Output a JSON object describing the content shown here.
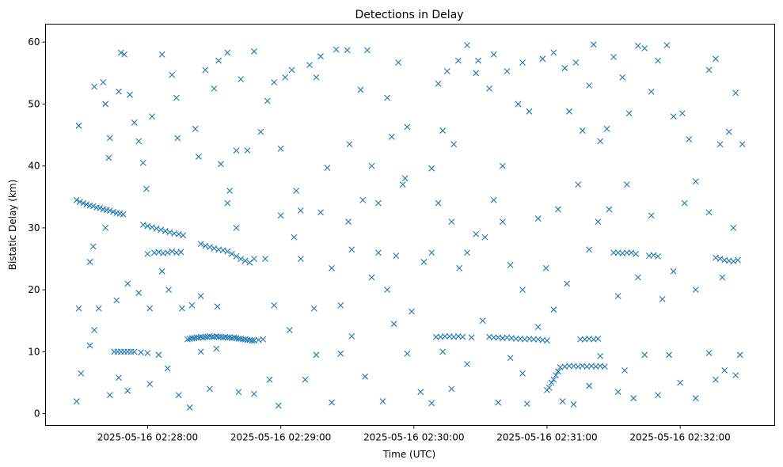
{
  "chart_data": {
    "type": "scatter",
    "title": "Detections in Delay",
    "xlabel": "Time (UTC)",
    "ylabel": "Bistatic Delay (km)",
    "x_unit": "seconds after 2025-05-16 02:27:00",
    "xlim": [
      14,
      342.6
    ],
    "ylim": [
      -1.9,
      62.9
    ],
    "grid": false,
    "marker": "x",
    "color": "#1f77b4",
    "xticks": [
      {
        "value": 60,
        "label": "2025-05-16 02:28:00"
      },
      {
        "value": 120,
        "label": "2025-05-16 02:29:00"
      },
      {
        "value": 180,
        "label": "2025-05-16 02:30:00"
      },
      {
        "value": 240,
        "label": "2025-05-16 02:31:00"
      },
      {
        "value": 300,
        "label": "2025-05-16 02:32:00"
      }
    ],
    "yticks": [
      {
        "value": 0,
        "label": "0"
      },
      {
        "value": 10,
        "label": "10"
      },
      {
        "value": 20,
        "label": "20"
      },
      {
        "value": 30,
        "label": "30"
      },
      {
        "value": 40,
        "label": "40"
      },
      {
        "value": 50,
        "label": "50"
      },
      {
        "value": 60,
        "label": "60"
      }
    ],
    "points": [
      [
        29,
        46.5
      ],
      [
        36,
        52.8
      ],
      [
        40,
        53.5
      ],
      [
        41,
        50
      ],
      [
        42.5,
        41.3
      ],
      [
        43,
        44.5
      ],
      [
        47,
        52
      ],
      [
        48,
        58.3
      ],
      [
        49.5,
        58
      ],
      [
        52,
        51.5
      ],
      [
        54,
        47
      ],
      [
        56,
        44
      ],
      [
        58,
        40.5
      ],
      [
        59.5,
        36.3
      ],
      [
        62,
        48
      ],
      [
        66.5,
        58
      ],
      [
        71,
        54.7
      ],
      [
        73,
        51
      ],
      [
        73.5,
        44.5
      ],
      [
        81.5,
        46
      ],
      [
        83,
        41.5
      ],
      [
        86,
        55.5
      ],
      [
        90,
        52.5
      ],
      [
        92,
        57
      ],
      [
        93,
        40.3
      ],
      [
        96,
        58.3
      ],
      [
        97,
        36
      ],
      [
        100,
        42.5
      ],
      [
        102,
        54
      ],
      [
        105,
        42.5
      ],
      [
        108,
        58.5
      ],
      [
        111,
        45.5
      ],
      [
        114,
        50.5
      ],
      [
        117,
        53.5
      ],
      [
        120,
        42.8
      ],
      [
        122,
        54.3
      ],
      [
        125,
        55.5
      ],
      [
        127,
        36
      ],
      [
        129,
        32.8
      ],
      [
        133,
        56.3
      ],
      [
        136,
        54.3
      ],
      [
        138,
        57.7
      ],
      [
        141,
        39.7
      ],
      [
        145,
        58.8
      ],
      [
        150,
        58.7
      ],
      [
        151,
        43.5
      ],
      [
        156,
        52.3
      ],
      [
        159,
        58.7
      ],
      [
        161,
        40
      ],
      [
        164,
        34
      ],
      [
        168,
        51
      ],
      [
        170,
        44.7
      ],
      [
        173,
        56.7
      ],
      [
        176,
        38
      ],
      [
        177,
        46.3
      ],
      [
        188,
        39.6
      ],
      [
        191,
        53.3
      ],
      [
        193,
        45.7
      ],
      [
        195,
        55.3
      ],
      [
        198,
        43.5
      ],
      [
        200,
        57
      ],
      [
        204,
        59.5
      ],
      [
        208,
        55
      ],
      [
        209,
        57
      ],
      [
        214,
        52.5
      ],
      [
        216,
        58
      ],
      [
        220,
        40
      ],
      [
        222,
        55.3
      ],
      [
        227,
        50
      ],
      [
        229,
        56.7
      ],
      [
        232,
        48.8
      ],
      [
        238,
        57.3
      ],
      [
        243,
        58.3
      ],
      [
        248,
        55.8
      ],
      [
        250,
        48.8
      ],
      [
        253,
        56.7
      ],
      [
        256,
        45.7
      ],
      [
        259,
        53
      ],
      [
        261,
        59.6
      ],
      [
        264,
        44
      ],
      [
        267,
        46
      ],
      [
        270,
        57.6
      ],
      [
        274,
        54.3
      ],
      [
        277,
        48.5
      ],
      [
        281,
        59.4
      ],
      [
        284,
        59
      ],
      [
        287,
        52
      ],
      [
        290,
        57
      ],
      [
        294,
        59.5
      ],
      [
        297,
        48
      ],
      [
        301,
        48.5
      ],
      [
        304,
        44.3
      ],
      [
        307,
        37.5
      ],
      [
        313,
        55.5
      ],
      [
        316,
        57.3
      ],
      [
        318,
        43.5
      ],
      [
        322,
        45.5
      ],
      [
        325,
        51.8
      ],
      [
        328,
        43.5
      ],
      [
        29,
        17
      ],
      [
        34,
        24.5
      ],
      [
        35.5,
        27
      ],
      [
        38,
        17
      ],
      [
        41,
        30
      ],
      [
        46,
        18.3
      ],
      [
        51,
        21
      ],
      [
        56,
        19.5
      ],
      [
        61,
        17
      ],
      [
        66.5,
        23
      ],
      [
        69.5,
        20
      ],
      [
        75.5,
        17
      ],
      [
        80,
        17.5
      ],
      [
        84,
        19
      ],
      [
        91.5,
        17.3
      ],
      [
        96,
        34
      ],
      [
        100,
        30
      ],
      [
        108,
        25
      ],
      [
        113,
        25
      ],
      [
        117,
        17.5
      ],
      [
        120,
        32
      ],
      [
        126,
        28.5
      ],
      [
        129,
        25
      ],
      [
        135,
        17
      ],
      [
        138,
        32.5
      ],
      [
        143,
        23.5
      ],
      [
        147,
        17.5
      ],
      [
        150.5,
        31
      ],
      [
        152,
        26.5
      ],
      [
        157,
        34.5
      ],
      [
        161,
        22
      ],
      [
        164,
        26
      ],
      [
        168,
        20
      ],
      [
        172,
        25.5
      ],
      [
        175,
        37
      ],
      [
        179,
        16.5
      ],
      [
        184.5,
        24.5
      ],
      [
        188,
        26
      ],
      [
        191,
        34
      ],
      [
        197,
        31
      ],
      [
        200.5,
        23.5
      ],
      [
        204,
        26
      ],
      [
        208,
        29
      ],
      [
        212,
        28.5
      ],
      [
        216,
        34.5
      ],
      [
        220,
        31
      ],
      [
        223.5,
        24
      ],
      [
        229,
        20
      ],
      [
        236,
        31.5
      ],
      [
        239.5,
        23.5
      ],
      [
        245,
        33
      ],
      [
        249,
        21
      ],
      [
        254,
        37
      ],
      [
        259,
        26.5
      ],
      [
        263,
        31
      ],
      [
        268,
        33
      ],
      [
        272,
        19
      ],
      [
        276,
        37
      ],
      [
        281,
        22
      ],
      [
        287,
        32
      ],
      [
        292,
        18.5
      ],
      [
        297,
        23
      ],
      [
        302,
        34
      ],
      [
        307,
        20
      ],
      [
        313,
        32.5
      ],
      [
        319,
        22
      ],
      [
        324,
        30
      ],
      [
        28,
        2
      ],
      [
        30,
        6.5
      ],
      [
        34,
        11
      ],
      [
        36,
        13.5
      ],
      [
        43,
        3
      ],
      [
        47,
        5.8
      ],
      [
        51,
        3.7
      ],
      [
        61,
        4.8
      ],
      [
        65,
        9.5
      ],
      [
        69,
        7.3
      ],
      [
        74,
        3
      ],
      [
        79,
        1
      ],
      [
        84,
        10
      ],
      [
        88,
        4
      ],
      [
        91,
        10.5
      ],
      [
        101,
        3.5
      ],
      [
        108,
        3.2
      ],
      [
        115,
        5.5
      ],
      [
        119,
        1.3
      ],
      [
        124,
        13.5
      ],
      [
        131,
        5.5
      ],
      [
        136,
        9.5
      ],
      [
        143,
        1.8
      ],
      [
        147,
        9.7
      ],
      [
        152,
        12.5
      ],
      [
        158,
        6
      ],
      [
        166,
        2
      ],
      [
        171,
        14.5
      ],
      [
        177,
        9.7
      ],
      [
        183,
        3.5
      ],
      [
        188,
        1.7
      ],
      [
        193,
        10
      ],
      [
        197,
        4
      ],
      [
        204,
        8
      ],
      [
        211,
        15
      ],
      [
        218,
        1.8
      ],
      [
        223.5,
        9
      ],
      [
        229,
        6.5
      ],
      [
        231,
        1.6
      ],
      [
        236,
        14
      ],
      [
        243,
        16.8
      ],
      [
        247,
        2
      ],
      [
        252,
        1.5
      ],
      [
        259,
        4.5
      ],
      [
        264,
        9.3
      ],
      [
        272,
        3.5
      ],
      [
        275,
        7
      ],
      [
        279,
        2.5
      ],
      [
        284,
        9.5
      ],
      [
        290,
        3
      ],
      [
        295,
        9.5
      ],
      [
        300,
        5
      ],
      [
        307,
        2.5
      ],
      [
        313,
        9.8
      ],
      [
        316,
        5.5
      ],
      [
        320,
        7
      ],
      [
        325,
        6.2
      ],
      [
        327,
        9.5
      ],
      [
        28,
        34.5
      ],
      [
        29.5,
        34.2
      ],
      [
        31,
        34
      ],
      [
        32.5,
        33.8
      ],
      [
        34,
        33.6
      ],
      [
        35.5,
        33.5
      ],
      [
        37,
        33.3
      ],
      [
        38.5,
        33.2
      ],
      [
        40,
        33
      ],
      [
        41.5,
        32.9
      ],
      [
        43,
        32.8
      ],
      [
        44.5,
        32.6
      ],
      [
        46,
        32.4
      ],
      [
        47.5,
        32.3
      ],
      [
        49,
        32.2
      ],
      [
        58,
        30.5
      ],
      [
        60,
        30.3
      ],
      [
        62,
        30.1
      ],
      [
        64,
        29.9
      ],
      [
        66,
        29.7
      ],
      [
        68,
        29.5
      ],
      [
        70,
        29.3
      ],
      [
        72,
        29.1
      ],
      [
        74,
        29
      ],
      [
        76,
        28.8
      ],
      [
        84,
        27.4
      ],
      [
        86,
        27.1
      ],
      [
        88,
        26.9
      ],
      [
        90,
        26.7
      ],
      [
        92,
        26.5
      ],
      [
        94,
        26.4
      ],
      [
        96,
        26.2
      ],
      [
        98,
        25.8
      ],
      [
        100,
        25.4
      ],
      [
        102,
        25
      ],
      [
        104,
        24.7
      ],
      [
        106,
        24.4
      ],
      [
        78,
        12
      ],
      [
        79,
        12.1
      ],
      [
        80,
        12.2
      ],
      [
        81,
        12.2
      ],
      [
        82,
        12.3
      ],
      [
        83,
        12.3
      ],
      [
        84,
        12.4
      ],
      [
        85,
        12.3
      ],
      [
        86,
        12.4
      ],
      [
        87,
        12.4
      ],
      [
        88,
        12.5
      ],
      [
        89,
        12.4
      ],
      [
        90,
        12.4
      ],
      [
        91,
        12.5
      ],
      [
        92,
        12.4
      ],
      [
        93,
        12.4
      ],
      [
        94,
        12.3
      ],
      [
        95,
        12.4
      ],
      [
        96,
        12.3
      ],
      [
        97,
        12.3
      ],
      [
        98,
        12.2
      ],
      [
        99,
        12.3
      ],
      [
        100,
        12.2
      ],
      [
        101,
        12.1
      ],
      [
        102,
        12.1
      ],
      [
        103,
        12
      ],
      [
        104,
        12
      ],
      [
        105,
        11.9
      ],
      [
        106,
        11.9
      ],
      [
        107,
        11.8
      ],
      [
        108,
        11.8
      ],
      [
        110,
        11.9
      ],
      [
        112,
        12
      ],
      [
        45,
        10
      ],
      [
        46.5,
        10
      ],
      [
        48,
        10
      ],
      [
        49.5,
        10
      ],
      [
        51,
        10
      ],
      [
        52.5,
        10
      ],
      [
        54,
        10
      ],
      [
        57,
        9.9
      ],
      [
        60,
        9.8
      ],
      [
        60,
        25.8
      ],
      [
        63,
        26
      ],
      [
        65,
        26.1
      ],
      [
        67,
        25.9
      ],
      [
        69,
        26
      ],
      [
        71,
        26.2
      ],
      [
        73,
        26
      ],
      [
        75,
        26.1
      ],
      [
        190,
        12.4
      ],
      [
        192,
        12.4
      ],
      [
        194,
        12.5
      ],
      [
        196,
        12.5
      ],
      [
        198,
        12.4
      ],
      [
        200,
        12.5
      ],
      [
        202,
        12.4
      ],
      [
        206,
        12.3
      ],
      [
        214,
        12.4
      ],
      [
        216,
        12.3
      ],
      [
        218,
        12.3
      ],
      [
        220,
        12.2
      ],
      [
        222,
        12.3
      ],
      [
        224,
        12.2
      ],
      [
        226,
        12.1
      ],
      [
        228,
        12.1
      ],
      [
        230,
        12
      ],
      [
        232,
        12.1
      ],
      [
        234,
        12
      ],
      [
        236,
        12
      ],
      [
        238,
        11.9
      ],
      [
        240,
        11.8
      ],
      [
        240,
        3.8
      ],
      [
        241,
        4.2
      ],
      [
        242,
        5
      ],
      [
        243,
        5.5
      ],
      [
        244,
        6.2
      ],
      [
        245,
        6.8
      ],
      [
        246,
        7.5
      ],
      [
        248,
        7.6
      ],
      [
        250,
        7.7
      ],
      [
        252,
        7.7
      ],
      [
        254,
        7.6
      ],
      [
        256,
        7.7
      ],
      [
        258,
        7.6
      ],
      [
        260,
        7.7
      ],
      [
        262,
        7.6
      ],
      [
        264,
        7.7
      ],
      [
        266,
        7.6
      ],
      [
        255,
        12
      ],
      [
        257,
        12
      ],
      [
        259,
        12.1
      ],
      [
        261,
        12
      ],
      [
        263,
        12.1
      ],
      [
        270,
        26
      ],
      [
        272,
        26
      ],
      [
        274,
        25.9
      ],
      [
        276,
        26
      ],
      [
        278,
        26
      ],
      [
        280,
        25.8
      ],
      [
        286,
        25.5
      ],
      [
        288,
        25.6
      ],
      [
        290,
        25.4
      ],
      [
        316,
        25.2
      ],
      [
        318,
        25
      ],
      [
        320,
        24.8
      ],
      [
        322,
        24.7
      ],
      [
        324,
        24.6
      ],
      [
        326,
        24.8
      ]
    ]
  }
}
